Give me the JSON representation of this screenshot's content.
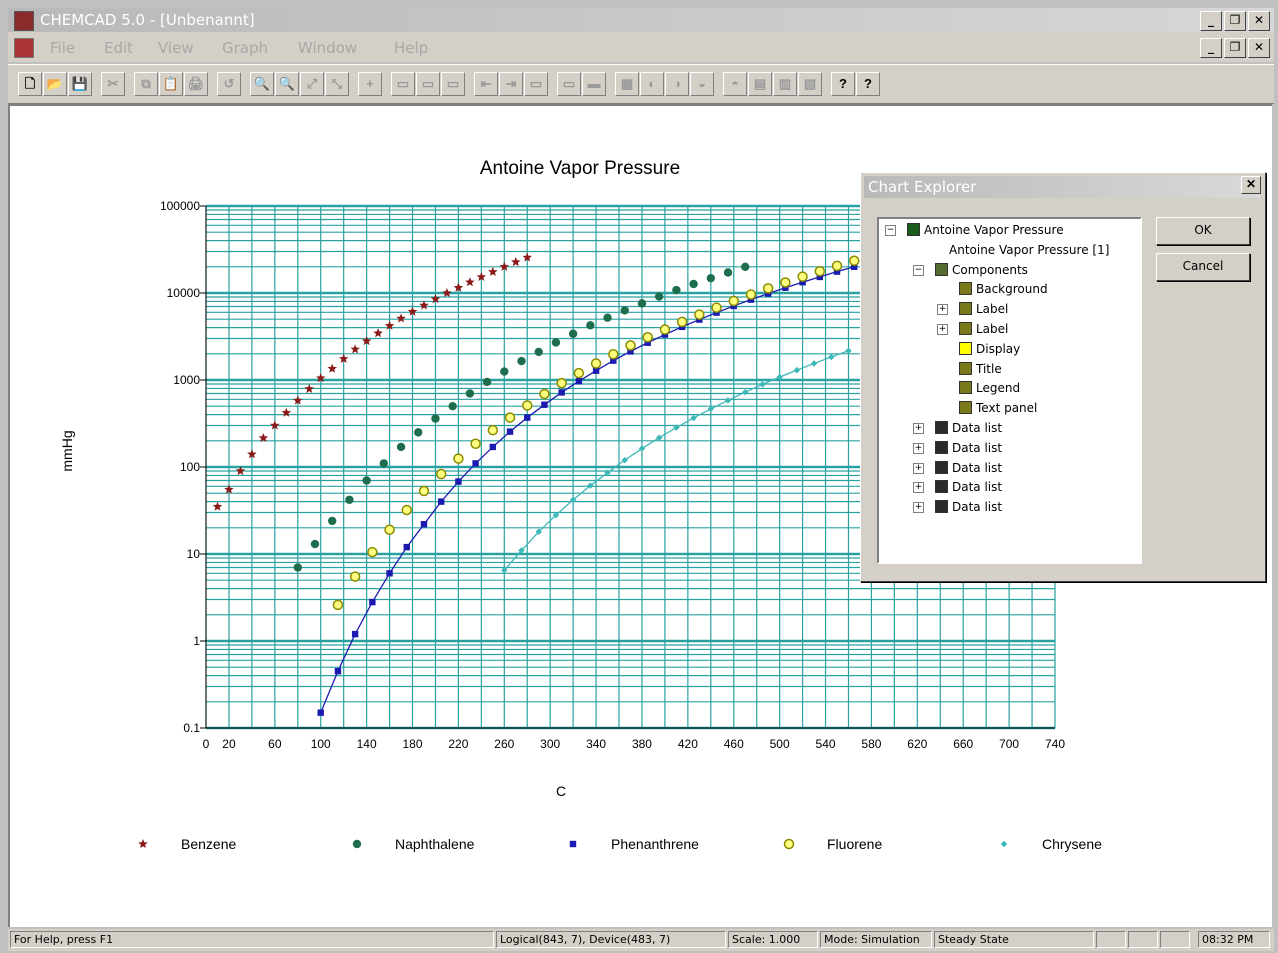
{
  "window": {
    "title": "CHEMCAD 5.0 - [Unbenannt]",
    "min": "_",
    "max": "❐",
    "close": "✕"
  },
  "menu": [
    "File",
    "Edit",
    "View",
    "Graph",
    "Window",
    "Help"
  ],
  "toolbar": [
    "🗋",
    "📂",
    "💾",
    "✂",
    "⧉",
    "📋",
    "🖨",
    "↺",
    "🔍",
    "🔍",
    "⤢",
    "⤡",
    "+",
    "▭",
    "▭",
    "▭",
    "⇤",
    "⇥",
    "▭",
    "▭",
    "▬",
    "▦",
    "◐",
    "◑",
    "◒",
    "◓",
    "▤",
    "▥",
    "▧",
    "?",
    "?"
  ],
  "chart_data": {
    "type": "scatter",
    "title": "Antoine Vapor Pressure",
    "xlabel": "C",
    "ylabel": "mmHg",
    "yscale": "log",
    "xlim": [
      0,
      740
    ],
    "ylim": [
      0.1,
      100000
    ],
    "grid": true,
    "legend_position": "bottom",
    "x_ticks": [
      "0",
      "20",
      "60",
      "100",
      "140",
      "180",
      "220",
      "260",
      "300",
      "340",
      "380",
      "420",
      "460",
      "500",
      "540",
      "580",
      "620",
      "660",
      "700",
      "740"
    ],
    "y_ticks": [
      "0.1",
      "1",
      "10",
      "100",
      "1000",
      "10000",
      "100000"
    ],
    "series": [
      {
        "name": "Benzene",
        "color": "#8b1a1a",
        "marker": "star",
        "line": false,
        "x": [
          10,
          20,
          30,
          40,
          50,
          60,
          70,
          80,
          90,
          100,
          110,
          120,
          130,
          140,
          150,
          160,
          170,
          180,
          190,
          200,
          210,
          220,
          230,
          240,
          250,
          260,
          270,
          280
        ],
        "y": [
          35,
          55,
          90,
          140,
          215,
          300,
          420,
          580,
          790,
          1050,
          1350,
          1750,
          2250,
          2800,
          3450,
          4200,
          5100,
          6100,
          7200,
          8500,
          10000,
          11500,
          13300,
          15300,
          17500,
          20000,
          22700,
          25600
        ]
      },
      {
        "name": "Naphthalene",
        "color": "#1e6e4e",
        "marker": "circle",
        "line": false,
        "x": [
          80,
          95,
          110,
          125,
          140,
          155,
          170,
          185,
          200,
          215,
          230,
          245,
          260,
          275,
          290,
          305,
          320,
          335,
          350,
          365,
          380,
          395,
          410,
          425,
          440,
          455,
          470
        ],
        "y": [
          7,
          13,
          24,
          42,
          70,
          110,
          170,
          250,
          360,
          500,
          700,
          950,
          1250,
          1650,
          2100,
          2700,
          3400,
          4250,
          5200,
          6300,
          7600,
          9100,
          10800,
          12700,
          14800,
          17200,
          20000
        ]
      },
      {
        "name": "Phenanthrene",
        "color": "#1a1ab0",
        "marker": "square",
        "line": true,
        "x": [
          100,
          115,
          130,
          145,
          160,
          175,
          190,
          205,
          220,
          235,
          250,
          265,
          280,
          295,
          310,
          325,
          340,
          355,
          370,
          385,
          400,
          415,
          430,
          445,
          460,
          475,
          490,
          505,
          520,
          535,
          550,
          565
        ],
        "y": [
          0.15,
          0.45,
          1.2,
          2.8,
          6,
          12,
          22,
          40,
          68,
          110,
          170,
          255,
          370,
          520,
          720,
          970,
          1280,
          1670,
          2130,
          2680,
          3330,
          4080,
          4950,
          5950,
          7100,
          8400,
          9850,
          11500,
          13300,
          15300,
          17600,
          20000
        ]
      },
      {
        "name": "Fluorene",
        "color": "#b8b800",
        "marker": "ring",
        "line": false,
        "x": [
          115,
          130,
          145,
          160,
          175,
          190,
          205,
          220,
          235,
          250,
          265,
          280,
          295,
          310,
          325,
          340,
          355,
          370,
          385,
          400,
          415,
          430,
          445,
          460,
          475,
          490,
          505,
          520,
          535,
          550,
          565
        ],
        "y": [
          2.6,
          5.5,
          10.5,
          19,
          32,
          53,
          83,
          125,
          185,
          265,
          370,
          510,
          690,
          920,
          1200,
          1550,
          1980,
          2500,
          3100,
          3800,
          4650,
          5650,
          6800,
          8100,
          9600,
          11300,
          13200,
          15400,
          17800,
          20500,
          23500
        ]
      },
      {
        "name": "Chrysene",
        "color": "#3fb8b8",
        "marker": "diamond",
        "line": true,
        "x": [
          260,
          275,
          290,
          305,
          320,
          335,
          350,
          365,
          380,
          395,
          410,
          425,
          440,
          455,
          470,
          485,
          500,
          515,
          530,
          545,
          560
        ],
        "y": [
          6.5,
          11,
          18,
          28,
          42,
          61,
          86,
          120,
          163,
          217,
          284,
          366,
          465,
          584,
          725,
          890,
          1080,
          1300,
          1550,
          1840,
          2170
        ]
      }
    ]
  },
  "chart_explorer": {
    "title": "Chart Explorer",
    "close": "✕",
    "tree": [
      {
        "label": "Antoine Vapor Pressure",
        "level": 0,
        "expand": "−",
        "icon_color": "#1a5a1a"
      },
      {
        "label": "Antoine Vapor Pressure [1]",
        "level": 1,
        "expand": "",
        "icon_color": ""
      },
      {
        "label": "Components",
        "level": 1,
        "expand": "−",
        "icon_color": "#556b2f"
      },
      {
        "label": "Background",
        "level": 2,
        "expand": "",
        "icon_color": "#7a7a1a"
      },
      {
        "label": "Label",
        "level": 2,
        "expand": "+",
        "icon_color": "#7a7a1a"
      },
      {
        "label": "Label",
        "level": 2,
        "expand": "+",
        "icon_color": "#7a7a1a"
      },
      {
        "label": "Display",
        "level": 2,
        "expand": "",
        "icon_color": "#ffff00"
      },
      {
        "label": "Title",
        "level": 2,
        "expand": "",
        "icon_color": "#7a7a1a"
      },
      {
        "label": "Legend",
        "level": 2,
        "expand": "",
        "icon_color": "#7a7a1a"
      },
      {
        "label": "Text panel",
        "level": 2,
        "expand": "",
        "icon_color": "#7a7a1a"
      },
      {
        "label": "Data list",
        "level": 1,
        "expand": "+",
        "icon_color": "#2a2a2a"
      },
      {
        "label": "Data list",
        "level": 1,
        "expand": "+",
        "icon_color": "#2a2a2a"
      },
      {
        "label": "Data list",
        "level": 1,
        "expand": "+",
        "icon_color": "#2a2a2a"
      },
      {
        "label": "Data list",
        "level": 1,
        "expand": "+",
        "icon_color": "#2a2a2a"
      },
      {
        "label": "Data list",
        "level": 1,
        "expand": "+",
        "icon_color": "#2a2a2a"
      }
    ],
    "ok": "OK",
    "cancel": "Cancel"
  },
  "status": {
    "help": "For Help, press F1",
    "coords": "Logical(843, 7), Device(483, 7)",
    "scale": "Scale: 1.000",
    "mode": "Mode: Simulation",
    "state": "Steady State",
    "time": "08:32 PM"
  },
  "colors": {
    "grid": "#2aa1a1",
    "axis": "#000000"
  }
}
